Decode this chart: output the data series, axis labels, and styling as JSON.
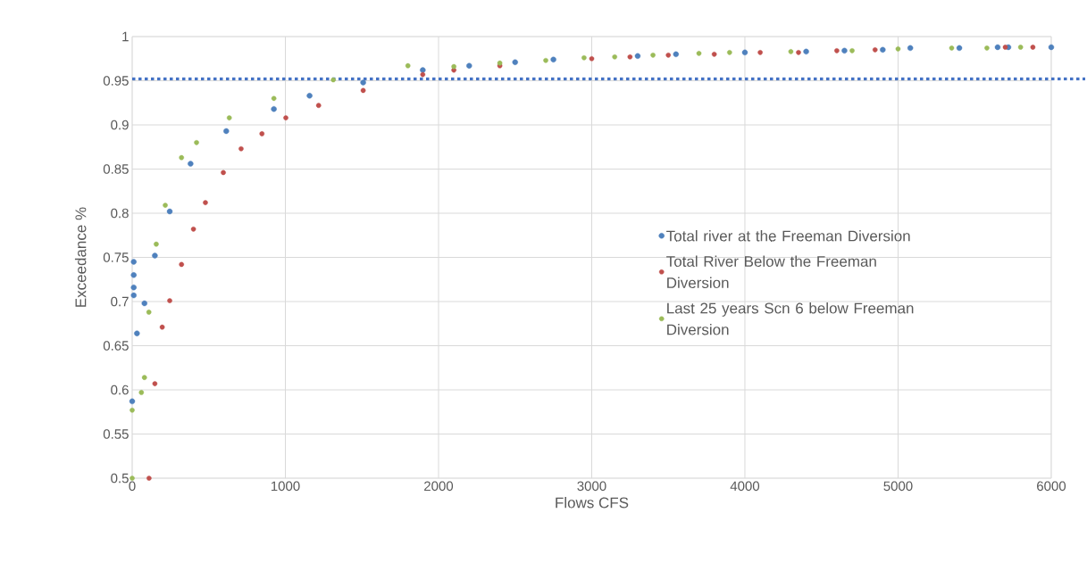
{
  "chart_data": {
    "type": "scatter",
    "xlabel": "Flows CFS",
    "ylabel": "Exceedance %",
    "xlim": [
      0,
      6000
    ],
    "ylim": [
      0.5,
      1
    ],
    "xticks": [
      0,
      1000,
      2000,
      3000,
      4000,
      5000,
      6000
    ],
    "yticks": [
      0.5,
      0.55,
      0.6,
      0.65,
      0.7,
      0.75,
      0.8,
      0.85,
      0.9,
      0.95,
      1
    ],
    "grid": true,
    "legend": "right",
    "marker": "circle",
    "ref_lines": [
      {
        "axis": "y",
        "value": 0.952,
        "color": "#4472c4",
        "line_style": "dotted"
      }
    ],
    "series": [
      {
        "name": "Total river at the Freeman Diversion",
        "color": "#4f81bd",
        "x": [
          0,
          10,
          10,
          10,
          10,
          31,
          80,
          148,
          245,
          381,
          614,
          925,
          1158,
          1508,
          1897,
          2200,
          2500,
          2750,
          3300,
          3550,
          4000,
          4400,
          4650,
          4900,
          5080,
          5400,
          5650,
          5720,
          6000
        ],
        "values": [
          0.587,
          0.707,
          0.716,
          0.73,
          0.745,
          0.664,
          0.698,
          0.752,
          0.802,
          0.856,
          0.893,
          0.918,
          0.933,
          0.948,
          0.962,
          0.967,
          0.971,
          0.974,
          0.978,
          0.98,
          0.982,
          0.983,
          0.984,
          0.985,
          0.987,
          0.987,
          0.988,
          0.988,
          0.988
        ]
      },
      {
        "name": "Total River Below the Freeman Diversion",
        "color": "#c0504d",
        "x": [
          110,
          148,
          196,
          245,
          322,
          400,
          478,
          595,
          711,
          847,
          1003,
          1217,
          1508,
          1897,
          2100,
          2400,
          3000,
          3250,
          3500,
          3800,
          4100,
          4350,
          4600,
          4850,
          5700,
          5880
        ],
        "values": [
          0.5,
          0.607,
          0.671,
          0.701,
          0.742,
          0.782,
          0.812,
          0.846,
          0.873,
          0.89,
          0.908,
          0.922,
          0.939,
          0.957,
          0.962,
          0.967,
          0.975,
          0.977,
          0.979,
          0.98,
          0.982,
          0.982,
          0.984,
          0.985,
          0.988,
          0.988
        ]
      },
      {
        "name": "Last 25 years Scn 6  below Freeman Diversion",
        "color": "#9bbb59",
        "x": [
          0,
          0,
          60,
          80,
          109,
          157,
          216,
          322,
          420,
          634,
          925,
          1313,
          1800,
          2100,
          2400,
          2700,
          2950,
          3150,
          3400,
          3700,
          3900,
          4300,
          4700,
          5000,
          5350,
          5580,
          5800
        ],
        "values": [
          0.5,
          0.577,
          0.597,
          0.614,
          0.688,
          0.765,
          0.809,
          0.863,
          0.88,
          0.908,
          0.93,
          0.951,
          0.967,
          0.966,
          0.97,
          0.973,
          0.976,
          0.977,
          0.979,
          0.981,
          0.982,
          0.983,
          0.984,
          0.986,
          0.987,
          0.987,
          0.988
        ]
      }
    ]
  }
}
